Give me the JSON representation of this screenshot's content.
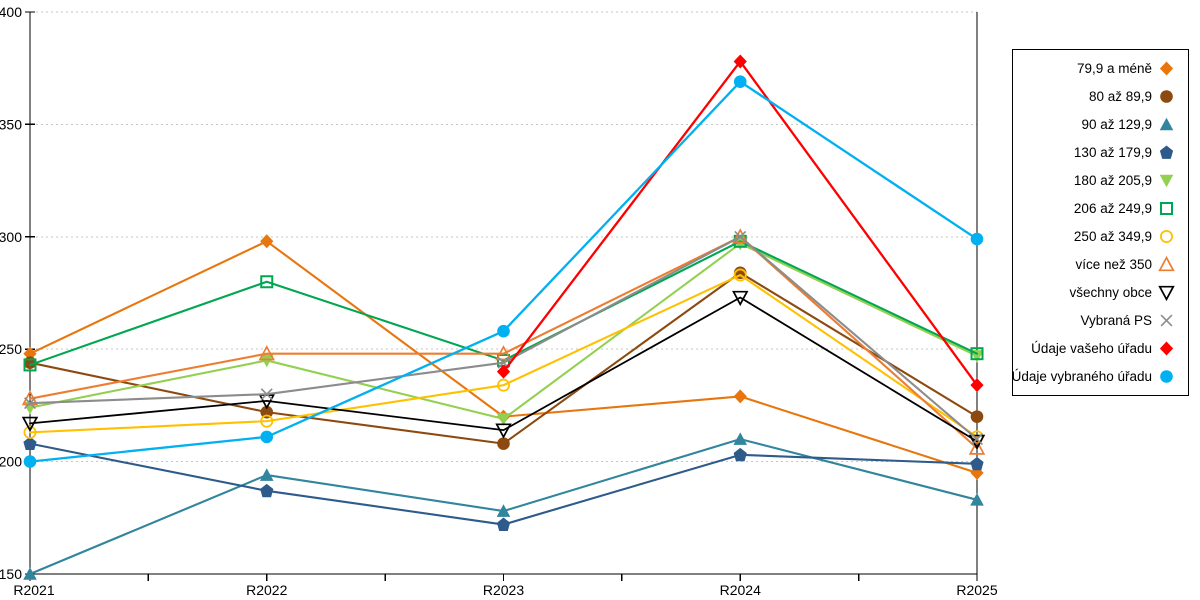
{
  "chart_data": {
    "type": "line",
    "title": "",
    "xlabel": "",
    "ylabel": "",
    "categories": [
      "R2021",
      "R2022",
      "R2023",
      "R2024",
      "R2025"
    ],
    "ylim": [
      150,
      400
    ],
    "yticks": [
      150,
      200,
      250,
      300,
      350,
      400
    ],
    "grid": "horizontal-dotted",
    "grid_color": "#C6C6C6",
    "axis_color": "#000000",
    "legend_position": "right-box",
    "series": [
      {
        "name": "79,9 a méně",
        "color": "#E8760E",
        "marker": "diamond",
        "marker_fill": "solid",
        "values": [
          248,
          298,
          220,
          229,
          195
        ]
      },
      {
        "name": "80 až 89,9",
        "color": "#8C4A10",
        "marker": "circle",
        "marker_fill": "solid",
        "values": [
          244,
          222,
          208,
          284,
          220
        ]
      },
      {
        "name": "90 až 129,9",
        "color": "#31859C",
        "marker": "triangle-up",
        "marker_fill": "solid",
        "values": [
          150,
          194,
          178,
          210,
          183
        ]
      },
      {
        "name": "130 až 179,9",
        "color": "#2E5B8A",
        "marker": "pentagon",
        "marker_fill": "solid",
        "values": [
          208,
          187,
          172,
          203,
          199
        ]
      },
      {
        "name": "180 až 205,9",
        "color": "#92D050",
        "marker": "triangle-down",
        "marker_fill": "solid",
        "values": [
          224,
          245,
          219,
          297,
          247
        ]
      },
      {
        "name": "206 až 249,9",
        "color": "#00A651",
        "marker": "square-open",
        "marker_fill": "open",
        "values": [
          243,
          280,
          245,
          298,
          248
        ]
      },
      {
        "name": "250 až 349,9",
        "color": "#FFC000",
        "marker": "circle-open",
        "marker_fill": "open",
        "values": [
          213,
          218,
          234,
          283,
          211
        ]
      },
      {
        "name": "více než 350",
        "color": "#ED7D31",
        "marker": "triangle-up-open",
        "marker_fill": "open",
        "values": [
          228,
          248,
          248,
          300,
          206
        ]
      },
      {
        "name": "všechny obce",
        "color": "#000000",
        "marker": "triangle-down-open",
        "marker_fill": "open",
        "values": [
          217,
          227,
          214,
          273,
          209
        ]
      },
      {
        "name": "Vybraná PS",
        "color": "#8C8C8C",
        "marker": "x-cross",
        "marker_fill": "open",
        "values": [
          226,
          230,
          244,
          300,
          210
        ]
      },
      {
        "name": "Údaje vašeho úřadu",
        "color": "#FF0000",
        "marker": "diamond",
        "marker_fill": "solid",
        "values": [
          null,
          null,
          240,
          378,
          234
        ]
      },
      {
        "name": "Údaje vybraného úřadu",
        "color": "#00B0F0",
        "marker": "circle",
        "marker_fill": "solid",
        "values": [
          200,
          211,
          258,
          369,
          299
        ]
      }
    ]
  }
}
